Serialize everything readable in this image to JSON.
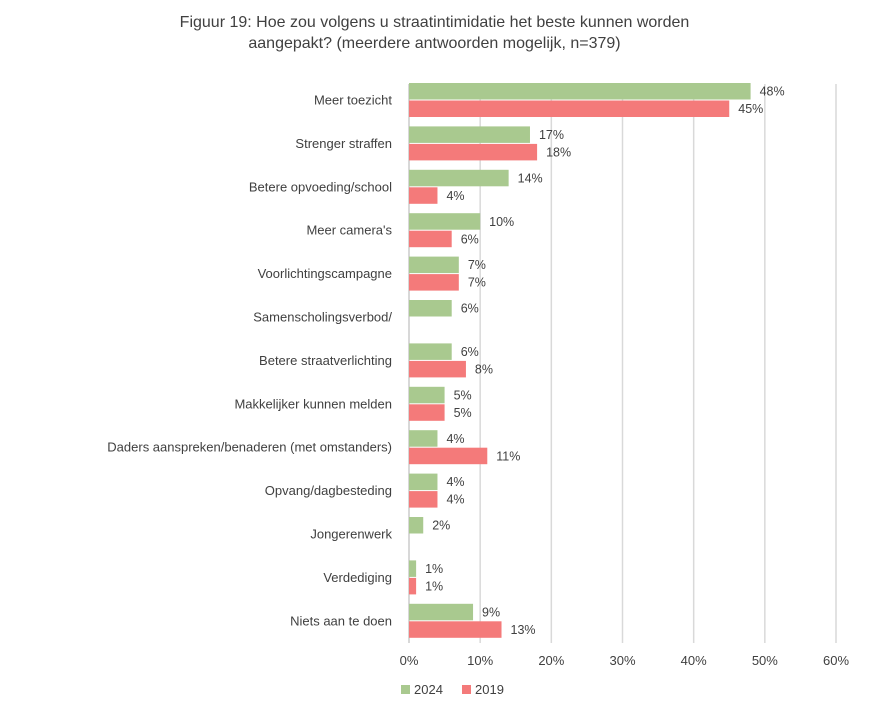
{
  "chart_data": {
    "type": "bar",
    "orientation": "horizontal",
    "title_line1": "Figuur 19: Hoe zou volgens u straatintimidatie het beste kunnen worden",
    "title_line2": "aangepakt? (meerdere antwoorden mogelijk, n=379)",
    "categories": [
      "Meer toezicht",
      "Strenger straffen",
      "Betere opvoeding/school",
      "Meer camera's",
      "Voorlichtingscampagne",
      "Samenscholingsverbod/",
      "Betere straatverlichting",
      "Makkelijker kunnen melden",
      "Daders aanspreken/benaderen (met omstanders)",
      "Opvang/dagbesteding",
      "Jongerenwerk",
      "Verdediging",
      "Niets aan te doen"
    ],
    "series": [
      {
        "name": "2024",
        "color": "#a9c98f",
        "values": [
          48,
          17,
          14,
          10,
          7,
          6,
          6,
          5,
          4,
          4,
          2,
          1,
          9
        ],
        "labels": [
          "48%",
          "17%",
          "14%",
          "10%",
          "7%",
          "6%",
          "6%",
          "5%",
          "4%",
          "4%",
          "2%",
          "1%",
          "9%"
        ]
      },
      {
        "name": "2019",
        "color": "#f47a7a",
        "values": [
          45,
          18,
          4,
          6,
          7,
          null,
          8,
          5,
          11,
          4,
          null,
          1,
          13
        ],
        "labels": [
          "45%",
          "18%",
          "4%",
          "6%",
          "7%",
          null,
          "8%",
          "5%",
          "11%",
          "4%",
          null,
          "1%",
          "13%"
        ]
      }
    ],
    "xlim": [
      0,
      60
    ],
    "xticks": [
      "0%",
      "10%",
      "20%",
      "30%",
      "40%",
      "50%",
      "60%"
    ],
    "grid": true,
    "legend": [
      "2024",
      "2019"
    ],
    "legend_position": "bottom-center"
  }
}
